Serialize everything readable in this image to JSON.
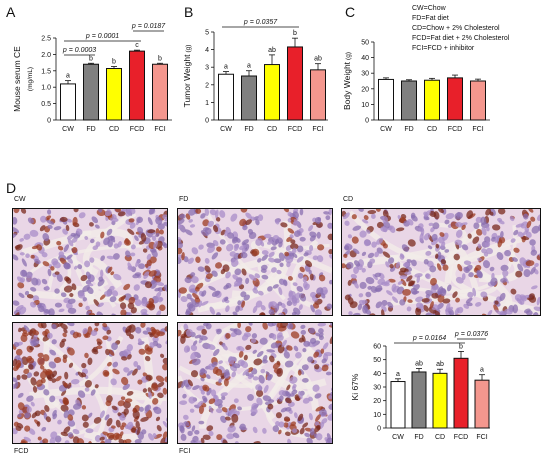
{
  "panels": {
    "A": "A",
    "B": "B",
    "C": "C",
    "D": "D"
  },
  "legend": [
    "CW=Chow",
    "FD=Fat diet",
    "CD=Chow + 2% Cholesterol",
    "FCD=Fat diet + 2% Cholesterol",
    "FCI=FCD + inhibitor"
  ],
  "colors": {
    "CW": "#ffffff",
    "FD": "#808080",
    "CD": "#ffff00",
    "FCD": "#e8202a",
    "FCI": "#f4978e"
  },
  "micrographs": {
    "labels": [
      "CW",
      "FD",
      "CD",
      "FCD",
      "FCI"
    ]
  },
  "chart_data": [
    {
      "id": "A",
      "type": "bar",
      "categories": [
        "CW",
        "FD",
        "CD",
        "FCD",
        "FCI"
      ],
      "values": [
        1.1,
        1.7,
        1.57,
        2.1,
        1.7
      ],
      "errors": [
        0.1,
        0.03,
        0.06,
        0.03,
        0.03
      ],
      "letters": [
        "a",
        "b",
        "b",
        "c",
        "b"
      ],
      "ylabel": "Mouse serum CE",
      "yunit": "(mg/mL)",
      "ylim": [
        0,
        2.5
      ],
      "yticks": [
        "0",
        "0.5",
        "1.0",
        "1.5",
        "2.0",
        "2.5"
      ],
      "comparisons": [
        {
          "from": "CW",
          "to": "FD",
          "label": "p = 0.0003"
        },
        {
          "from": "CW",
          "to": "FCD",
          "label": "p = 0.0001"
        },
        {
          "from": "FCD",
          "to": "FCI",
          "label": "p = 0.0187"
        }
      ]
    },
    {
      "id": "B",
      "type": "bar",
      "categories": [
        "CW",
        "FD",
        "CD",
        "FCD",
        "FCI"
      ],
      "values": [
        2.6,
        2.5,
        3.15,
        4.15,
        2.85
      ],
      "errors": [
        0.15,
        0.3,
        0.55,
        0.5,
        0.35
      ],
      "letters": [
        "a",
        "a",
        "ab",
        "b",
        "ab"
      ],
      "ylabel": "Tumor Weight",
      "yunit": "(g)",
      "ylim": [
        0,
        5
      ],
      "yticks": [
        "0",
        "1",
        "2",
        "3",
        "4",
        "5"
      ],
      "comparisons": [
        {
          "from": "CW",
          "to": "FCD",
          "label": "p = 0.0357"
        }
      ]
    },
    {
      "id": "C",
      "type": "bar",
      "categories": [
        "CW",
        "FD",
        "CD",
        "FCD",
        "FCI"
      ],
      "values": [
        26,
        25,
        25.5,
        27,
        25
      ],
      "errors": [
        1,
        0.8,
        1.2,
        1.8,
        1.2
      ],
      "letters": [],
      "ylabel": "Body Weight",
      "yunit": "(g)",
      "ylim": [
        0,
        50
      ],
      "yticks": [
        "0",
        "10",
        "20",
        "30",
        "40",
        "50"
      ],
      "comparisons": []
    },
    {
      "id": "Ki",
      "type": "bar",
      "categories": [
        "CW",
        "FD",
        "CD",
        "FCD",
        "FCI"
      ],
      "values": [
        34,
        41,
        40,
        51,
        35
      ],
      "errors": [
        2,
        2.5,
        3,
        5,
        4
      ],
      "letters": [
        "a",
        "ab",
        "ab",
        "b",
        "a"
      ],
      "ylabel": "Ki 67%",
      "yunit": "",
      "ylim": [
        0,
        60
      ],
      "yticks": [
        "0",
        "10",
        "20",
        "30",
        "40",
        "50",
        "60"
      ],
      "comparisons": [
        {
          "from": "CW",
          "to": "FCD",
          "label": "p = 0.0164"
        },
        {
          "from": "FCD",
          "to": "FCI",
          "label": "p = 0.0376"
        }
      ]
    }
  ]
}
